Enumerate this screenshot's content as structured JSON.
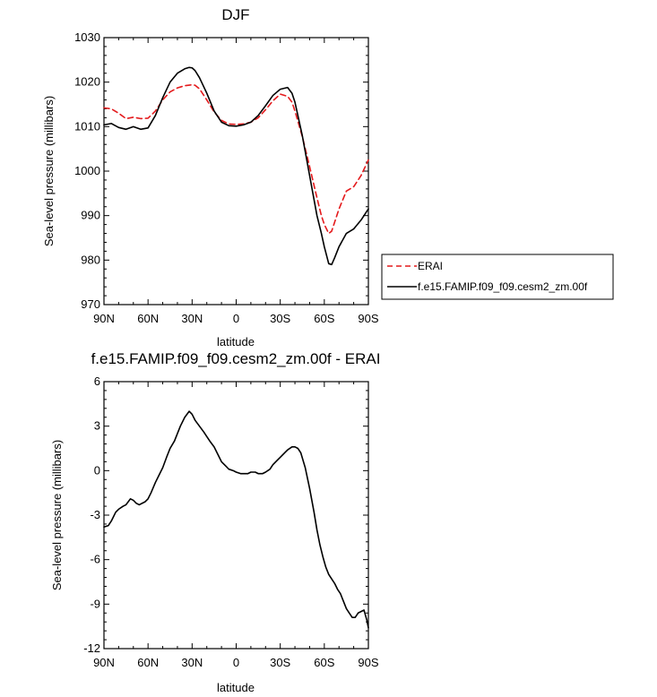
{
  "chart_data": [
    {
      "type": "line",
      "title": "DJF",
      "xlabel": "latitude",
      "ylabel": "Sea-level pressure (millibars)",
      "xlim": [
        -90,
        90
      ],
      "ylim": [
        970,
        1030
      ],
      "xticks": [
        -90,
        -60,
        -30,
        0,
        30,
        60,
        90
      ],
      "xticklabels": [
        "90N",
        "60N",
        "30N",
        "0",
        "30S",
        "60S",
        "90S"
      ],
      "yticks": [
        970,
        980,
        990,
        1000,
        1010,
        1020,
        1030
      ],
      "yticklabels": [
        "970",
        "980",
        "990",
        "1000",
        "1010",
        "1020",
        "1030"
      ],
      "legend": {
        "placement": "outside-right",
        "entries": [
          "ERAI",
          "f.e15.FAMIP.f09_f09.cesm2_zm.00f"
        ]
      },
      "series": [
        {
          "name": "ERAI",
          "color": "#e41a1c",
          "dash": "dashed",
          "x": [
            -90,
            -85,
            -80,
            -75,
            -70,
            -65,
            -60,
            -55,
            -50,
            -45,
            -40,
            -35,
            -30,
            -28,
            -25,
            -20,
            -15,
            -10,
            -5,
            0,
            5,
            10,
            15,
            20,
            25,
            30,
            35,
            38,
            40,
            45,
            50,
            55,
            58,
            60,
            63,
            65,
            67,
            70,
            75,
            80,
            85,
            90
          ],
          "y": [
            1014.2,
            1014.0,
            1013.0,
            1011.8,
            1012.1,
            1011.8,
            1011.9,
            1013.5,
            1016.0,
            1017.8,
            1018.7,
            1019.2,
            1019.4,
            1019.3,
            1018.5,
            1016.0,
            1013.3,
            1011.4,
            1010.6,
            1010.5,
            1010.6,
            1011.0,
            1012.0,
            1013.8,
            1015.8,
            1017.3,
            1016.8,
            1015.5,
            1013.5,
            1007.8,
            1001.0,
            994.0,
            990.0,
            988.0,
            986.0,
            986.5,
            988.5,
            991.5,
            995.5,
            996.5,
            999.0,
            1002.5
          ]
        },
        {
          "name": "f.e15.FAMIP.f09_f09.cesm2_zm.00f",
          "color": "#000000",
          "dash": "solid",
          "x": [
            -90,
            -85,
            -80,
            -75,
            -70,
            -65,
            -60,
            -55,
            -50,
            -45,
            -40,
            -35,
            -32,
            -30,
            -28,
            -25,
            -20,
            -15,
            -10,
            -5,
            0,
            5,
            10,
            15,
            20,
            25,
            30,
            35,
            38,
            40,
            45,
            50,
            55,
            58,
            60,
            63,
            65,
            67,
            70,
            75,
            80,
            85,
            90
          ],
          "y": [
            1010.4,
            1010.7,
            1009.8,
            1009.4,
            1010.0,
            1009.4,
            1009.7,
            1012.5,
            1016.5,
            1020.0,
            1022.0,
            1023.0,
            1023.3,
            1023.2,
            1022.6,
            1021.0,
            1017.5,
            1013.5,
            1011.0,
            1010.2,
            1010.1,
            1010.4,
            1011.0,
            1012.5,
            1014.7,
            1017.0,
            1018.4,
            1018.8,
            1017.5,
            1015.5,
            1008.0,
            999.0,
            990.0,
            986.0,
            983.0,
            979.2,
            979.0,
            980.5,
            983.0,
            986.0,
            987.0,
            989.0,
            991.5
          ]
        }
      ]
    },
    {
      "type": "line",
      "title": "f.e15.FAMIP.f09_f09.cesm2_zm.00f - ERAI",
      "xlabel": "latitude",
      "ylabel": "Sea-level pressure (millibars)",
      "xlim": [
        -90,
        90
      ],
      "ylim": [
        -12,
        6
      ],
      "xticks": [
        -90,
        -60,
        -30,
        0,
        30,
        60,
        90
      ],
      "xticklabels": [
        "90N",
        "60N",
        "30N",
        "0",
        "30S",
        "60S",
        "90S"
      ],
      "yticks": [
        -12,
        -9,
        -6,
        -3,
        0,
        3,
        6
      ],
      "yticklabels": [
        "-12",
        "-9",
        "-6",
        "-3",
        "0",
        "3",
        "6"
      ],
      "series": [
        {
          "name": "f.e15.FAMIP.f09_f09.cesm2_zm.00f - ERAI",
          "color": "#000000",
          "dash": "solid",
          "x": [
            -90,
            -87,
            -85,
            -82,
            -80,
            -77,
            -75,
            -72,
            -70,
            -68,
            -66,
            -64,
            -62,
            -60,
            -58,
            -55,
            -52,
            -50,
            -47,
            -45,
            -42,
            -40,
            -38,
            -35,
            -32,
            -30,
            -28,
            -25,
            -22,
            -20,
            -18,
            -15,
            -12,
            -10,
            -7,
            -5,
            -2,
            0,
            3,
            5,
            8,
            10,
            13,
            15,
            18,
            20,
            23,
            25,
            28,
            30,
            33,
            35,
            38,
            40,
            42,
            44,
            47,
            50,
            53,
            55,
            57,
            59,
            61,
            63,
            65,
            67,
            69,
            71,
            73,
            75,
            77,
            79,
            81,
            83,
            85,
            87,
            89,
            90
          ],
          "y": [
            -3.8,
            -3.7,
            -3.4,
            -2.8,
            -2.6,
            -2.4,
            -2.3,
            -1.9,
            -2.0,
            -2.2,
            -2.3,
            -2.2,
            -2.1,
            -1.9,
            -1.5,
            -0.8,
            -0.2,
            0.2,
            1.0,
            1.5,
            2.0,
            2.5,
            3.0,
            3.6,
            4.0,
            3.8,
            3.4,
            3.0,
            2.6,
            2.3,
            2.0,
            1.6,
            1.0,
            0.6,
            0.3,
            0.1,
            0.0,
            -0.1,
            -0.2,
            -0.2,
            -0.2,
            -0.1,
            -0.1,
            -0.2,
            -0.2,
            -0.1,
            0.1,
            0.4,
            0.7,
            0.9,
            1.2,
            1.4,
            1.6,
            1.6,
            1.5,
            1.2,
            0.2,
            -1.2,
            -2.8,
            -4.0,
            -5.0,
            -5.8,
            -6.5,
            -7.0,
            -7.3,
            -7.6,
            -8.0,
            -8.3,
            -8.8,
            -9.3,
            -9.6,
            -9.9,
            -9.9,
            -9.6,
            -9.5,
            -9.4,
            -10.1,
            -10.6
          ]
        }
      ]
    }
  ]
}
